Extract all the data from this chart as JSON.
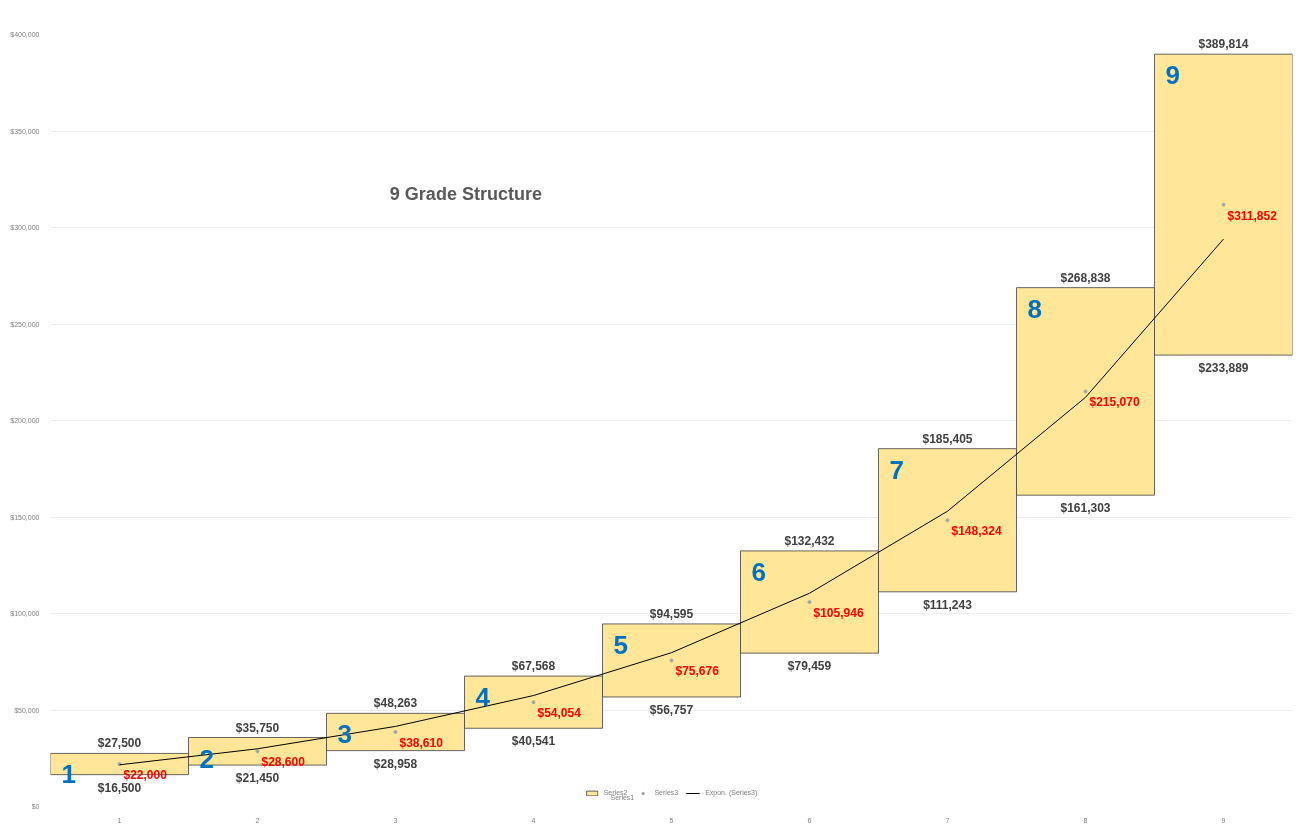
{
  "chart_data": {
    "type": "bar",
    "title": "9 Grade Structure",
    "categories": [
      "1",
      "2",
      "3",
      "4",
      "5",
      "6",
      "7",
      "8",
      "9"
    ],
    "series": [
      {
        "type": "bar",
        "name": "Series2",
        "color": "#ffe699",
        "base": [
          16500,
          21450,
          28958,
          40541,
          56757,
          79459,
          111243,
          161303,
          233889
        ],
        "values": [
          11000,
          14300,
          19305,
          27027,
          37838,
          52973,
          74162,
          107535,
          155925
        ]
      },
      {
        "type": "scatter",
        "name": "Series3",
        "color": "#a5a5a5",
        "marker": "circle",
        "values": [
          22000,
          28600,
          38610,
          54054,
          75676,
          105946,
          148324,
          215070,
          311852
        ],
        "value_labels": [
          "$22,000",
          "$28,600",
          "$38,610",
          "$54,054",
          "$75,676",
          "$105,946",
          "$148,324",
          "$215,070",
          "$311,852"
        ]
      },
      {
        "type": "line",
        "name": "Expon. (Series3)",
        "color": "#000000",
        "values": [
          21600,
          29900,
          41500,
          57500,
          79700,
          110500,
          153000,
          212000,
          294000
        ]
      }
    ],
    "ylim": [
      0,
      400000
    ],
    "yticks": [
      {
        "value": 0,
        "label": "$0"
      },
      {
        "value": 50000,
        "label": "$50,000"
      },
      {
        "value": 100000,
        "label": "$100,000"
      },
      {
        "value": 150000,
        "label": "$150,000"
      },
      {
        "value": 200000,
        "label": "$200,000"
      },
      {
        "value": 250000,
        "label": "$250,000"
      },
      {
        "value": 300000,
        "label": "$300,000"
      },
      {
        "value": 350000,
        "label": "$350,000"
      },
      {
        "value": 400000,
        "label": "$400,000"
      }
    ],
    "grid": "y",
    "legend": "bottom",
    "annotations": [
      {
        "text": "$27,500",
        "x": "1",
        "y": 27500
      },
      {
        "text": "$35,750",
        "x": "2",
        "y": 35750
      },
      {
        "text": "$48,263",
        "x": "3",
        "y": 48263
      },
      {
        "text": "$67,568",
        "x": "4",
        "y": 67568
      },
      {
        "text": "$94,595",
        "x": "5",
        "y": 94595
      },
      {
        "text": "$132,432",
        "x": "6",
        "y": 132432
      },
      {
        "text": "$185,405",
        "x": "7",
        "y": 185405
      },
      {
        "text": "$268,838",
        "x": "8",
        "y": 268838
      },
      {
        "text": "$389,814",
        "x": "9",
        "y": 389814
      },
      {
        "text": "$16,500",
        "x": "1",
        "y": 16500
      },
      {
        "text": "$21,450",
        "x": "2",
        "y": 21450
      },
      {
        "text": "$28,958",
        "x": "3",
        "y": 28958
      },
      {
        "text": "$40,541",
        "x": "4",
        "y": 40541
      },
      {
        "text": "$56,757",
        "x": "5",
        "y": 56757
      },
      {
        "text": "$79,459",
        "x": "6",
        "y": 79459
      },
      {
        "text": "$111,243",
        "x": "7",
        "y": 111243
      },
      {
        "text": "$161,303",
        "x": "8",
        "y": 161303
      },
      {
        "text": "$233,889",
        "x": "9",
        "y": 233889
      },
      {
        "text": "1",
        "x": "1",
        "y": 27500
      },
      {
        "text": "2",
        "x": "2",
        "y": 35750
      },
      {
        "text": "3",
        "x": "3",
        "y": 48263
      },
      {
        "text": "4",
        "x": "4",
        "y": 67568
      },
      {
        "text": "5",
        "x": "5",
        "y": 94595
      },
      {
        "text": "6",
        "x": "6",
        "y": 132432
      },
      {
        "text": "7",
        "x": "7",
        "y": 185405
      },
      {
        "text": "8",
        "x": "8",
        "y": 268838
      },
      {
        "text": "9",
        "x": "9",
        "y": 389814
      },
      "Series1"
    ]
  }
}
